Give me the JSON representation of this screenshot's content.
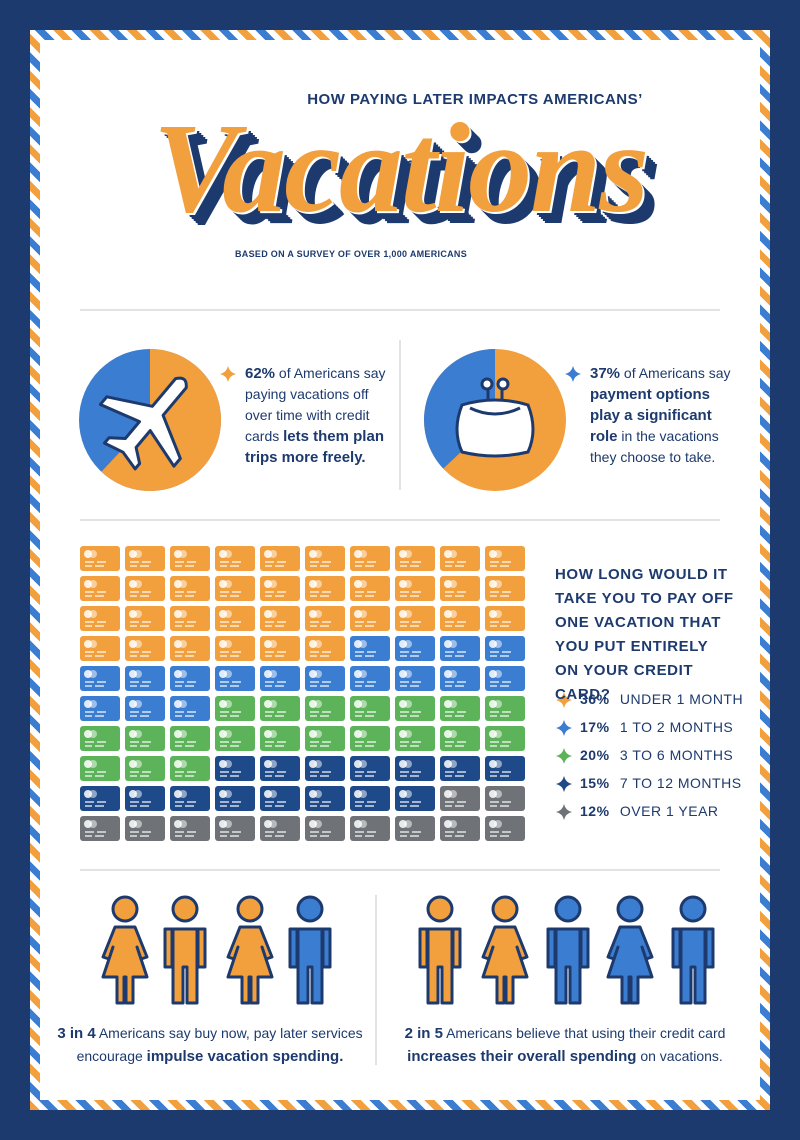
{
  "header": {
    "kicker": "HOW PAYING LATER IMPACTS AMERICANS’",
    "title": "Vacations",
    "subtitle": "BASED ON A SURVEY OF OVER 1,000 AMERICANS"
  },
  "pies": [
    {
      "value": 62,
      "label": "62%",
      "color": "#f29f3d",
      "rest_color": "#3b7dd0",
      "direction": "clockwise",
      "parts": [
        {
          "text": "of Americans say paying vacations off over time with credit cards",
          "bold": false
        },
        {
          "text": "lets them plan trips more freely.",
          "bold": true
        }
      ]
    },
    {
      "value": 37,
      "label": "37%",
      "color": "#3b7dd0",
      "rest_color": "#f29f3d",
      "direction": "counterclockwise",
      "parts": [
        {
          "text": "of Americans say",
          "bold": false
        },
        {
          "text": "payment options play a significant role",
          "bold": true
        },
        {
          "text": "in the vacations they choose to take.",
          "bold": false
        }
      ]
    }
  ],
  "waffle": {
    "question": "HOW LONG WOULD IT TAKE YOU TO PAY OFF ONE VACATION THAT YOU PUT ENTIRELY ON YOUR CREDIT CARD?",
    "columns": 10,
    "categories": [
      {
        "value": 36,
        "label": "36%",
        "name": "UNDER 1 MONTH",
        "color": "#f29f3d"
      },
      {
        "value": 17,
        "label": "17%",
        "name": "1 TO 2 MONTHS",
        "color": "#3b7dd0"
      },
      {
        "value": 20,
        "label": "20%",
        "name": "3 TO 6 MONTHS",
        "color": "#5cb35a"
      },
      {
        "value": 15,
        "label": "15%",
        "name": "7 TO 12 MONTHS",
        "color": "#1f4a8a"
      },
      {
        "value": 12,
        "label": "12%",
        "name": "OVER 1 YEAR",
        "color": "#6f7378"
      }
    ]
  },
  "people": [
    {
      "count": 3,
      "total": 4,
      "lead": "3 in 4",
      "color": "#f29f3d",
      "rest_color": "#3b7dd0",
      "parts": [
        {
          "text": "Americans say buy now, pay later services encourage",
          "bold": false
        },
        {
          "text": "impulse vacation spending.",
          "bold": true
        }
      ]
    },
    {
      "count": 2,
      "total": 5,
      "lead": "2 in 5",
      "color": "#f29f3d",
      "rest_color": "#3b7dd0",
      "parts": [
        {
          "text": "Americans believe that using their credit card",
          "bold": false
        },
        {
          "text": "increases their overall spending",
          "bold": true
        },
        {
          "text": "on vacations.",
          "bold": false
        }
      ]
    }
  ]
}
